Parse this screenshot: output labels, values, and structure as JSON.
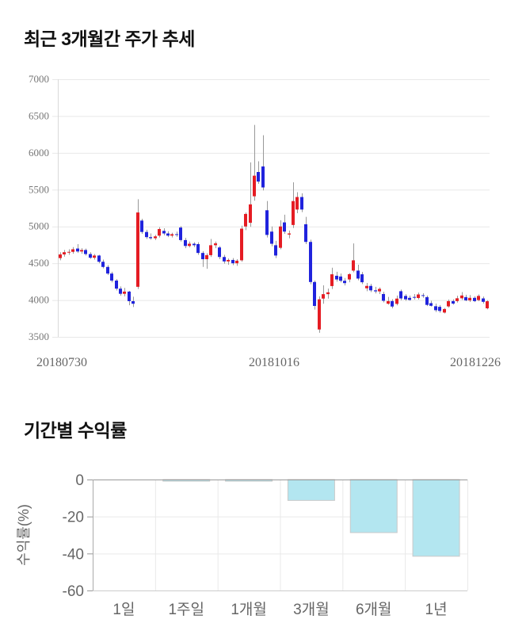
{
  "page": {
    "price_section_title": "최근 3개월간 주가 추세",
    "returns_section_title": "기간별 수익률"
  },
  "chart_data": [
    {
      "type": "candlestick",
      "title": "최근 3개월간 주가 추세",
      "x_labels": [
        "20180730",
        "20181016",
        "20181226"
      ],
      "y_ticks": [
        7000,
        6500,
        6000,
        5500,
        5000,
        4500,
        4000,
        3500
      ],
      "ylim": [
        3500,
        7000
      ],
      "grid": true,
      "colors": {
        "up": "#e51c23",
        "down": "#2023dd",
        "wick": "#999999",
        "grid": "#e8e8e8",
        "axis": "#d9d9d9",
        "tick_text": "#777777"
      },
      "ohlc_note": "each candle is [open, high, low, close]",
      "ohlc": [
        [
          4570,
          4650,
          4540,
          4620
        ],
        [
          4620,
          4680,
          4590,
          4650
        ],
        [
          4650,
          4690,
          4615,
          4655
        ],
        [
          4655,
          4720,
          4630,
          4690
        ],
        [
          4700,
          4760,
          4640,
          4660
        ],
        [
          4660,
          4705,
          4630,
          4680
        ],
        [
          4680,
          4700,
          4605,
          4625
        ],
        [
          4625,
          4650,
          4560,
          4575
        ],
        [
          4575,
          4625,
          4550,
          4605
        ],
        [
          4605,
          4615,
          4500,
          4520
        ],
        [
          4520,
          4550,
          4430,
          4450
        ],
        [
          4450,
          4475,
          4340,
          4360
        ],
        [
          4360,
          4385,
          4240,
          4265
        ],
        [
          4265,
          4285,
          4130,
          4155
        ],
        [
          4155,
          4185,
          4060,
          4085
        ],
        [
          4085,
          4165,
          4050,
          4115
        ],
        [
          4115,
          4125,
          3930,
          3985
        ],
        [
          3985,
          4045,
          3905,
          3950
        ],
        [
          4180,
          5370,
          4150,
          5190
        ],
        [
          5080,
          5105,
          4900,
          4925
        ],
        [
          4925,
          4955,
          4830,
          4855
        ],
        [
          4855,
          4905,
          4820,
          4840
        ],
        [
          4840,
          4885,
          4815,
          4865
        ],
        [
          4875,
          4990,
          4850,
          4965
        ],
        [
          4940,
          4975,
          4880,
          4905
        ],
        [
          4905,
          4935,
          4855,
          4875
        ],
        [
          4875,
          4915,
          4850,
          4895
        ],
        [
          4895,
          4930,
          4860,
          4885
        ],
        [
          4985,
          5005,
          4795,
          4815
        ],
        [
          4815,
          4845,
          4705,
          4735
        ],
        [
          4735,
          4795,
          4715,
          4765
        ],
        [
          4765,
          4785,
          4720,
          4745
        ],
        [
          4760,
          4785,
          4615,
          4640
        ],
        [
          4640,
          4665,
          4450,
          4555
        ],
        [
          4555,
          4635,
          4425,
          4610
        ],
        [
          4610,
          4830,
          4585,
          4745
        ],
        [
          4745,
          4795,
          4705,
          4770
        ],
        [
          4715,
          4735,
          4555,
          4585
        ],
        [
          4585,
          4615,
          4495,
          4525
        ],
        [
          4525,
          4565,
          4480,
          4545
        ],
        [
          4545,
          4570,
          4475,
          4500
        ],
        [
          4500,
          4555,
          4465,
          4535
        ],
        [
          4540,
          5010,
          4520,
          4970
        ],
        [
          5000,
          5190,
          4950,
          5170
        ],
        [
          5050,
          5870,
          4995,
          5300
        ],
        [
          5410,
          6380,
          5350,
          5690
        ],
        [
          5740,
          5885,
          5580,
          5610
        ],
        [
          5815,
          6240,
          5490,
          5530
        ],
        [
          5220,
          5345,
          4850,
          4885
        ],
        [
          4930,
          5000,
          4730,
          4765
        ],
        [
          4745,
          4805,
          4570,
          4605
        ],
        [
          4710,
          5085,
          4690,
          5000
        ],
        [
          5055,
          5160,
          4900,
          4930
        ],
        [
          4890,
          4945,
          4840,
          4905
        ],
        [
          5020,
          5600,
          4980,
          5345
        ],
        [
          5230,
          5465,
          5180,
          5400
        ],
        [
          5400,
          5450,
          5195,
          5230
        ],
        [
          5030,
          5130,
          4760,
          4790
        ],
        [
          4790,
          4820,
          4215,
          4245
        ],
        [
          4245,
          4265,
          3870,
          3920
        ],
        [
          3600,
          4050,
          3555,
          4010
        ],
        [
          4020,
          4200,
          3950,
          4080
        ],
        [
          4080,
          4155,
          4020,
          4105
        ],
        [
          4190,
          4440,
          4150,
          4350
        ],
        [
          4330,
          4385,
          4250,
          4280
        ],
        [
          4320,
          4360,
          4240,
          4262
        ],
        [
          4262,
          4300,
          4198,
          4230
        ],
        [
          4280,
          4365,
          4242,
          4352
        ],
        [
          4400,
          4770,
          4378,
          4540
        ],
        [
          4400,
          4480,
          4268,
          4292
        ],
        [
          4350,
          4382,
          4218,
          4242
        ],
        [
          4160,
          4232,
          4120,
          4192
        ],
        [
          4192,
          4220,
          4108,
          4132
        ],
        [
          4132,
          4180,
          4090,
          4118
        ],
        [
          4118,
          4172,
          4082,
          4152
        ],
        [
          4082,
          4112,
          3968,
          3990
        ],
        [
          3950,
          4042,
          3938,
          3986
        ],
        [
          3986,
          4012,
          3888,
          3912
        ],
        [
          3948,
          4062,
          3928,
          4020
        ],
        [
          4120,
          4142,
          3998,
          4022
        ],
        [
          4056,
          4080,
          3988,
          4010
        ],
        [
          4030,
          4062,
          3992,
          4002
        ],
        [
          4042,
          4082,
          4008,
          4038
        ],
        [
          4028,
          4102,
          4008,
          4076
        ],
        [
          4066,
          4092,
          4030,
          4058
        ],
        [
          4040,
          4062,
          3918,
          3934
        ],
        [
          3958,
          3990,
          3912,
          3922
        ],
        [
          3916,
          3952,
          3838,
          3862
        ],
        [
          3908,
          3932,
          3828,
          3852
        ],
        [
          3830,
          3892,
          3818,
          3878
        ],
        [
          3914,
          4008,
          3898,
          3986
        ],
        [
          3986,
          4010,
          3938,
          3952
        ],
        [
          3986,
          4058,
          3966,
          4024
        ],
        [
          4024,
          4108,
          4002,
          4062
        ],
        [
          4040,
          4072,
          3984,
          3996
        ],
        [
          3996,
          4068,
          3974,
          4030
        ],
        [
          4030,
          4052,
          3972,
          3986
        ],
        [
          4000,
          4076,
          3984,
          4056
        ],
        [
          4022,
          4048,
          3952,
          3976
        ],
        [
          3888,
          3998,
          3874,
          3984
        ]
      ]
    },
    {
      "type": "bar",
      "title": "기간별 수익률",
      "ylabel": "수익률(%)",
      "categories": [
        "1일",
        "1주일",
        "1개월",
        "3개월",
        "6개월",
        "1년"
      ],
      "values": [
        0,
        -0.9,
        -0.9,
        -11.3,
        -28.7,
        -41.5
      ],
      "yticks": [
        0,
        -20,
        -40,
        -60
      ],
      "ylim": [
        -60,
        0
      ],
      "grid": true,
      "legend": "none",
      "colors": {
        "bar": "#b3e6f0",
        "bar_border": "#c9c9c9",
        "grid": "#e9e9e9",
        "zero_line": "#999999",
        "axis": "#aaaaaa",
        "tick_text": "#666666"
      }
    }
  ]
}
